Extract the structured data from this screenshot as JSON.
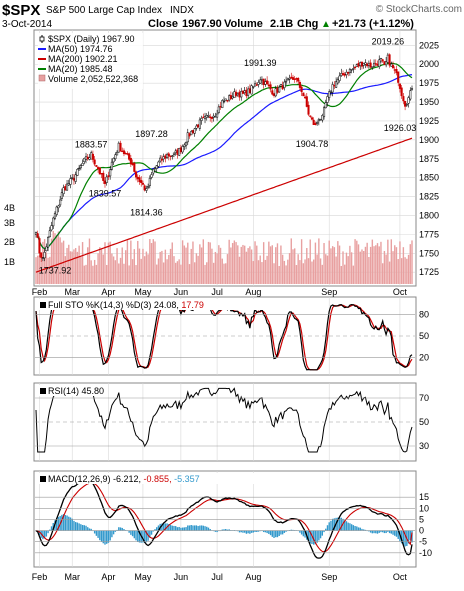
{
  "header": {
    "symbol": "$SPX",
    "name": "S&P 500 Large Cap Index",
    "exchange": "INDX",
    "watermark": "© StockCharts.com",
    "date": "3-Oct-2014",
    "close_label": "Close",
    "close_value": "1967.90",
    "volume_label": "Volume",
    "volume_value": "2.1B",
    "chg_label": "Chg",
    "chg_value": "+21.73 (+1.12%)",
    "chg_arrow": "▲"
  },
  "colors": {
    "up": "#000000",
    "down": "#cc0000",
    "ma50": "#1a1aff",
    "ma200": "#cc0000",
    "ma20": "#008000",
    "volume": "#e8a0a0",
    "stok": "#000000",
    "stod": "#cc0000",
    "macd_hist": "#3399cc",
    "panel_bg": "#ffffff",
    "grid": "#d8d8d8"
  },
  "price_panel": {
    "legend": [
      {
        "text": "$SPX (Daily) 1967.90",
        "color": "#000000",
        "icon": "candle-icon"
      },
      {
        "text": "MA(50) 1974.76",
        "color": "#1a1aff",
        "icon": "line-swatch-icon"
      },
      {
        "text": "MA(200) 1902.21",
        "color": "#cc0000",
        "icon": "line-swatch-icon"
      },
      {
        "text": "MA(20) 1985.48",
        "color": "#008000",
        "icon": "line-swatch-icon"
      },
      {
        "text": "Volume 2,052,522,368",
        "color": "#888888",
        "icon": "volume-swatch-icon"
      }
    ],
    "volume_labels": [
      "4B",
      "3B",
      "2B",
      "1B"
    ]
  },
  "sto_panel": {
    "label": "Full STO %K(14,3) %D(3) 24.08, 17.79",
    "label_main": "Full STO %K(14,3) %D(3) 24.08, ",
    "label_d": "17.79"
  },
  "rsi_panel": {
    "label": "RSI(14) 45.80"
  },
  "macd_panel": {
    "label_main": "MACD(12,26,9) -6.212, ",
    "label_signal": "-0.855, ",
    "label_hist": "-5.357"
  },
  "x_axis": {
    "labels": [
      "Feb",
      "Mar",
      "Apr",
      "May",
      "Jun",
      "Jul",
      "Aug",
      "Sep",
      "Oct"
    ]
  },
  "chart_data": {
    "type": "candlestick",
    "title": "$SPX S&P 500 Large Cap Index INDX",
    "x_ticks": [
      "Feb",
      "Mar",
      "Apr",
      "May",
      "Jun",
      "Jul",
      "Aug",
      "Sep",
      "Oct"
    ],
    "y_ticks": [
      1725,
      1750,
      1775,
      1800,
      1825,
      1850,
      1875,
      1900,
      1925,
      1950,
      1975,
      2000,
      2025
    ],
    "ylim": [
      1712,
      2040
    ],
    "price_keypoints": [
      [
        0,
        1782
      ],
      [
        2,
        1752
      ],
      [
        4,
        1742
      ],
      [
        6,
        1760
      ],
      [
        10,
        1795
      ],
      [
        16,
        1835
      ],
      [
        22,
        1850
      ],
      [
        28,
        1872
      ],
      [
        32,
        1880
      ],
      [
        36,
        1862
      ],
      [
        40,
        1840
      ],
      [
        44,
        1870
      ],
      [
        48,
        1892
      ],
      [
        52,
        1880
      ],
      [
        56,
        1868
      ],
      [
        58,
        1852
      ],
      [
        62,
        1840
      ],
      [
        64,
        1832
      ],
      [
        68,
        1860
      ],
      [
        72,
        1872
      ],
      [
        76,
        1880
      ],
      [
        80,
        1880
      ],
      [
        84,
        1888
      ],
      [
        88,
        1905
      ],
      [
        92,
        1915
      ],
      [
        96,
        1925
      ],
      [
        100,
        1930
      ],
      [
        104,
        1935
      ],
      [
        108,
        1950
      ],
      [
        112,
        1955
      ],
      [
        116,
        1962
      ],
      [
        120,
        1960
      ],
      [
        124,
        1965
      ],
      [
        128,
        1975
      ],
      [
        130,
        1982
      ],
      [
        134,
        1972
      ],
      [
        138,
        1962
      ],
      [
        142,
        1970
      ],
      [
        146,
        1976
      ],
      [
        150,
        1982
      ],
      [
        154,
        1966
      ],
      [
        156,
        1952
      ],
      [
        158,
        1935
      ],
      [
        160,
        1925
      ],
      [
        162,
        1918
      ],
      [
        164,
        1930
      ],
      [
        166,
        1928
      ],
      [
        168,
        1948
      ],
      [
        172,
        1972
      ],
      [
        176,
        1982
      ],
      [
        180,
        1990
      ],
      [
        184,
        1994
      ],
      [
        188,
        2000
      ],
      [
        190,
        2003
      ],
      [
        194,
        1998
      ],
      [
        198,
        2002
      ],
      [
        200,
        2005
      ],
      [
        202,
        1996
      ],
      [
        204,
        2008
      ],
      [
        206,
        1998
      ],
      [
        208,
        1990
      ],
      [
        210,
        1980
      ],
      [
        212,
        1962
      ],
      [
        214,
        1948
      ],
      [
        216,
        1955
      ],
      [
        218,
        1967
      ]
    ],
    "annotations": [
      {
        "text": "1737.92",
        "bar": 3,
        "value": 1737.92,
        "pos": "below"
      },
      {
        "text": "1839.57",
        "bar": 40,
        "value": 1839.57,
        "pos": "below"
      },
      {
        "text": "1883.57",
        "bar": 32,
        "value": 1883.57,
        "pos": "above"
      },
      {
        "text": "1897.28",
        "bar": 67,
        "value": 1897.28,
        "pos": "above"
      },
      {
        "text": "1814.36",
        "bar": 64,
        "value": 1814.36,
        "pos": "below"
      },
      {
        "text": "1991.39",
        "bar": 130,
        "value": 1991.39,
        "pos": "above"
      },
      {
        "text": "1904.78",
        "bar": 160,
        "value": 1904.78,
        "pos": "below"
      },
      {
        "text": "2019.26",
        "bar": 204,
        "value": 2019.26,
        "pos": "above"
      },
      {
        "text": "1926.03",
        "bar": 214,
        "value": 1926.03,
        "pos": "below"
      }
    ],
    "latest": {
      "close": 1967.9,
      "ma50": 1974.76,
      "ma200": 1902.21,
      "ma20": 1985.48,
      "volume": 2052522368
    },
    "indicators": {
      "full_sto": {
        "k": 24.08,
        "d": 17.79,
        "levels": [
          20,
          50,
          80
        ],
        "ylim": [
          0,
          100
        ],
        "ticks": [
          20,
          50,
          80
        ]
      },
      "rsi": {
        "value": 45.8,
        "levels": [
          30,
          50,
          70
        ],
        "ylim": [
          20,
          80
        ],
        "ticks": [
          30,
          50,
          70
        ]
      },
      "macd": {
        "macd": -6.212,
        "signal": -0.855,
        "hist": -5.357,
        "ylim": [
          -15,
          20
        ],
        "ticks": [
          -10,
          -5,
          0,
          5,
          10,
          15
        ]
      }
    }
  }
}
